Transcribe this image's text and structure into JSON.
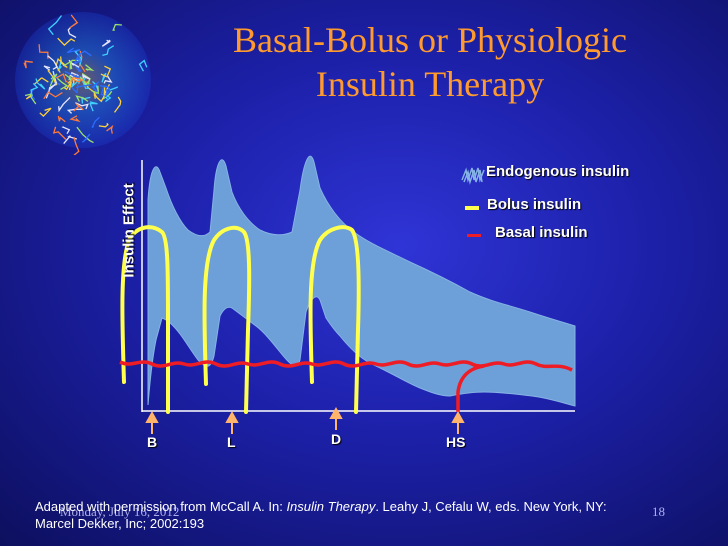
{
  "slide": {
    "title_line1": "Basal-Bolus or Physiologic",
    "title_line2": "Insulin Therapy",
    "citation_prefix": "Adapted with permission from McCall A. In: ",
    "citation_book": "Insulin Therapy",
    "citation_suffix": ". Leahy J, Cefalu W, eds. New York, NY:",
    "citation_line2": "Marcel Dekker, Inc; 2002:193",
    "footer_date": "Monday, July 16, 2012",
    "page_number": "18"
  },
  "colors": {
    "title": "#ff9a2e",
    "endogenous": "#6d9fd8",
    "bolus": "#ffff4d",
    "basal": "#ee1c25",
    "arrow": "#ffb36b"
  },
  "chart_data": {
    "type": "area",
    "ylabel": "Insulin Effect",
    "meal_markers": [
      "B",
      "L",
      "D",
      "HS"
    ],
    "legend": {
      "endogenous": "Endogenous insulin",
      "bolus": "Bolus insulin",
      "basal": "Basal insulin"
    },
    "legend_position": "top-right",
    "grid": false
  }
}
